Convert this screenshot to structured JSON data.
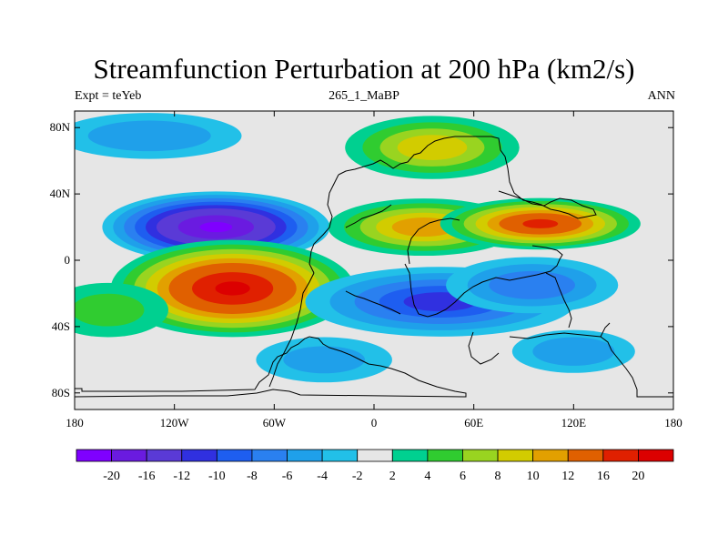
{
  "chart_data": {
    "type": "heatmap",
    "title": "Streamfunction Perturbation at 200 hPa (km2/s)",
    "subtitle_left": "Expt = teYeb",
    "subtitle_center": "265_1_MaBP",
    "subtitle_right": "ANN",
    "xlim": [
      -180,
      180
    ],
    "ylim": [
      -90,
      90
    ],
    "x_ticks": [
      {
        "value": -180,
        "label": "180"
      },
      {
        "value": -120,
        "label": "120W"
      },
      {
        "value": -60,
        "label": "60W"
      },
      {
        "value": 0,
        "label": "0"
      },
      {
        "value": 60,
        "label": "60E"
      },
      {
        "value": 120,
        "label": "120E"
      },
      {
        "value": 180,
        "label": "180"
      }
    ],
    "y_ticks": [
      {
        "value": 80,
        "label": "80N"
      },
      {
        "value": 40,
        "label": "40N"
      },
      {
        "value": 0,
        "label": "0"
      },
      {
        "value": -40,
        "label": "40S"
      },
      {
        "value": -80,
        "label": "80S"
      }
    ],
    "colorbar": {
      "colors": [
        "#7f00ff",
        "#6a1be0",
        "#5a3ad6",
        "#3030e0",
        "#1e5ef0",
        "#2a80f0",
        "#1fa0ea",
        "#22c0e8",
        "#e6e6e6",
        "#00d090",
        "#30cc30",
        "#99d420",
        "#d2cc00",
        "#e2a000",
        "#e06000",
        "#e02000",
        "#dc0000"
      ],
      "labels": [
        "-20",
        "-16",
        "-12",
        "-10",
        "-8",
        "-6",
        "-4",
        "-2",
        "2",
        "4",
        "6",
        "8",
        "10",
        "12",
        "16",
        "20"
      ]
    },
    "anomalies": [
      {
        "lon": -95,
        "lat": 20,
        "value": -20
      },
      {
        "lon": -85,
        "lat": -17,
        "value": 20
      },
      {
        "lon": -135,
        "lat": 75,
        "value": -5
      },
      {
        "lon": 35,
        "lat": 68,
        "value": 9
      },
      {
        "lon": 30,
        "lat": 20,
        "value": 11
      },
      {
        "lon": 100,
        "lat": 22,
        "value": 16
      },
      {
        "lon": 40,
        "lat": -25,
        "value": -10
      },
      {
        "lon": 95,
        "lat": -15,
        "value": -7
      },
      {
        "lon": -30,
        "lat": -60,
        "value": -4
      },
      {
        "lon": 120,
        "lat": -55,
        "value": -5
      },
      {
        "lon": -160,
        "lat": -30,
        "value": 4
      }
    ]
  }
}
